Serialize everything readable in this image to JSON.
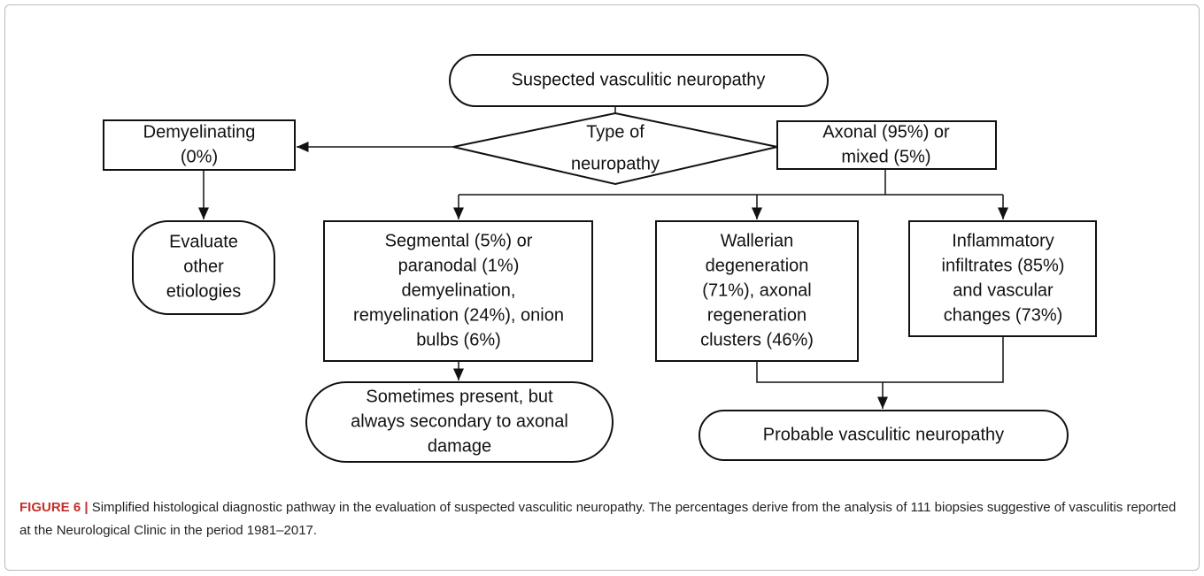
{
  "nodes": [
    {
      "lines": [
        "Suspected vasculitic neuropathy"
      ]
    },
    {
      "lines": [
        "Type of",
        "neuropathy"
      ]
    },
    {
      "lines": [
        "Demyelinating",
        "(0%)"
      ]
    },
    {
      "lines": [
        "Axonal (95%) or",
        "mixed (5%)"
      ]
    },
    {
      "lines": [
        "Evaluate",
        "other",
        "etiologies"
      ]
    },
    {
      "lines": [
        "Segmental (5%) or",
        "paranodal (1%)",
        "demyelination,",
        "remyelination (24%), onion",
        "bulbs (6%)"
      ]
    },
    {
      "lines": [
        "Wallerian",
        "degeneration",
        "(71%), axonal",
        "regeneration",
        "clusters (46%)"
      ]
    },
    {
      "lines": [
        "Inflammatory",
        "infiltrates (85%)",
        "and vascular",
        "changes (73%)"
      ]
    },
    {
      "lines": [
        "Sometimes present, but",
        "always secondary to axonal",
        "damage"
      ]
    },
    {
      "lines": [
        "Probable vasculitic neuropathy"
      ]
    }
  ],
  "caption": {
    "label": "FIGURE 6 |",
    "lines": [
      "Simplified histological diagnostic pathway in the evaluation of suspected vasculitic neuropathy. The percentages derive from the analysis of 111 biopsies",
      "suggestive of vasculitis reported at the Neurological Clinic in the period 1981–2017."
    ]
  }
}
